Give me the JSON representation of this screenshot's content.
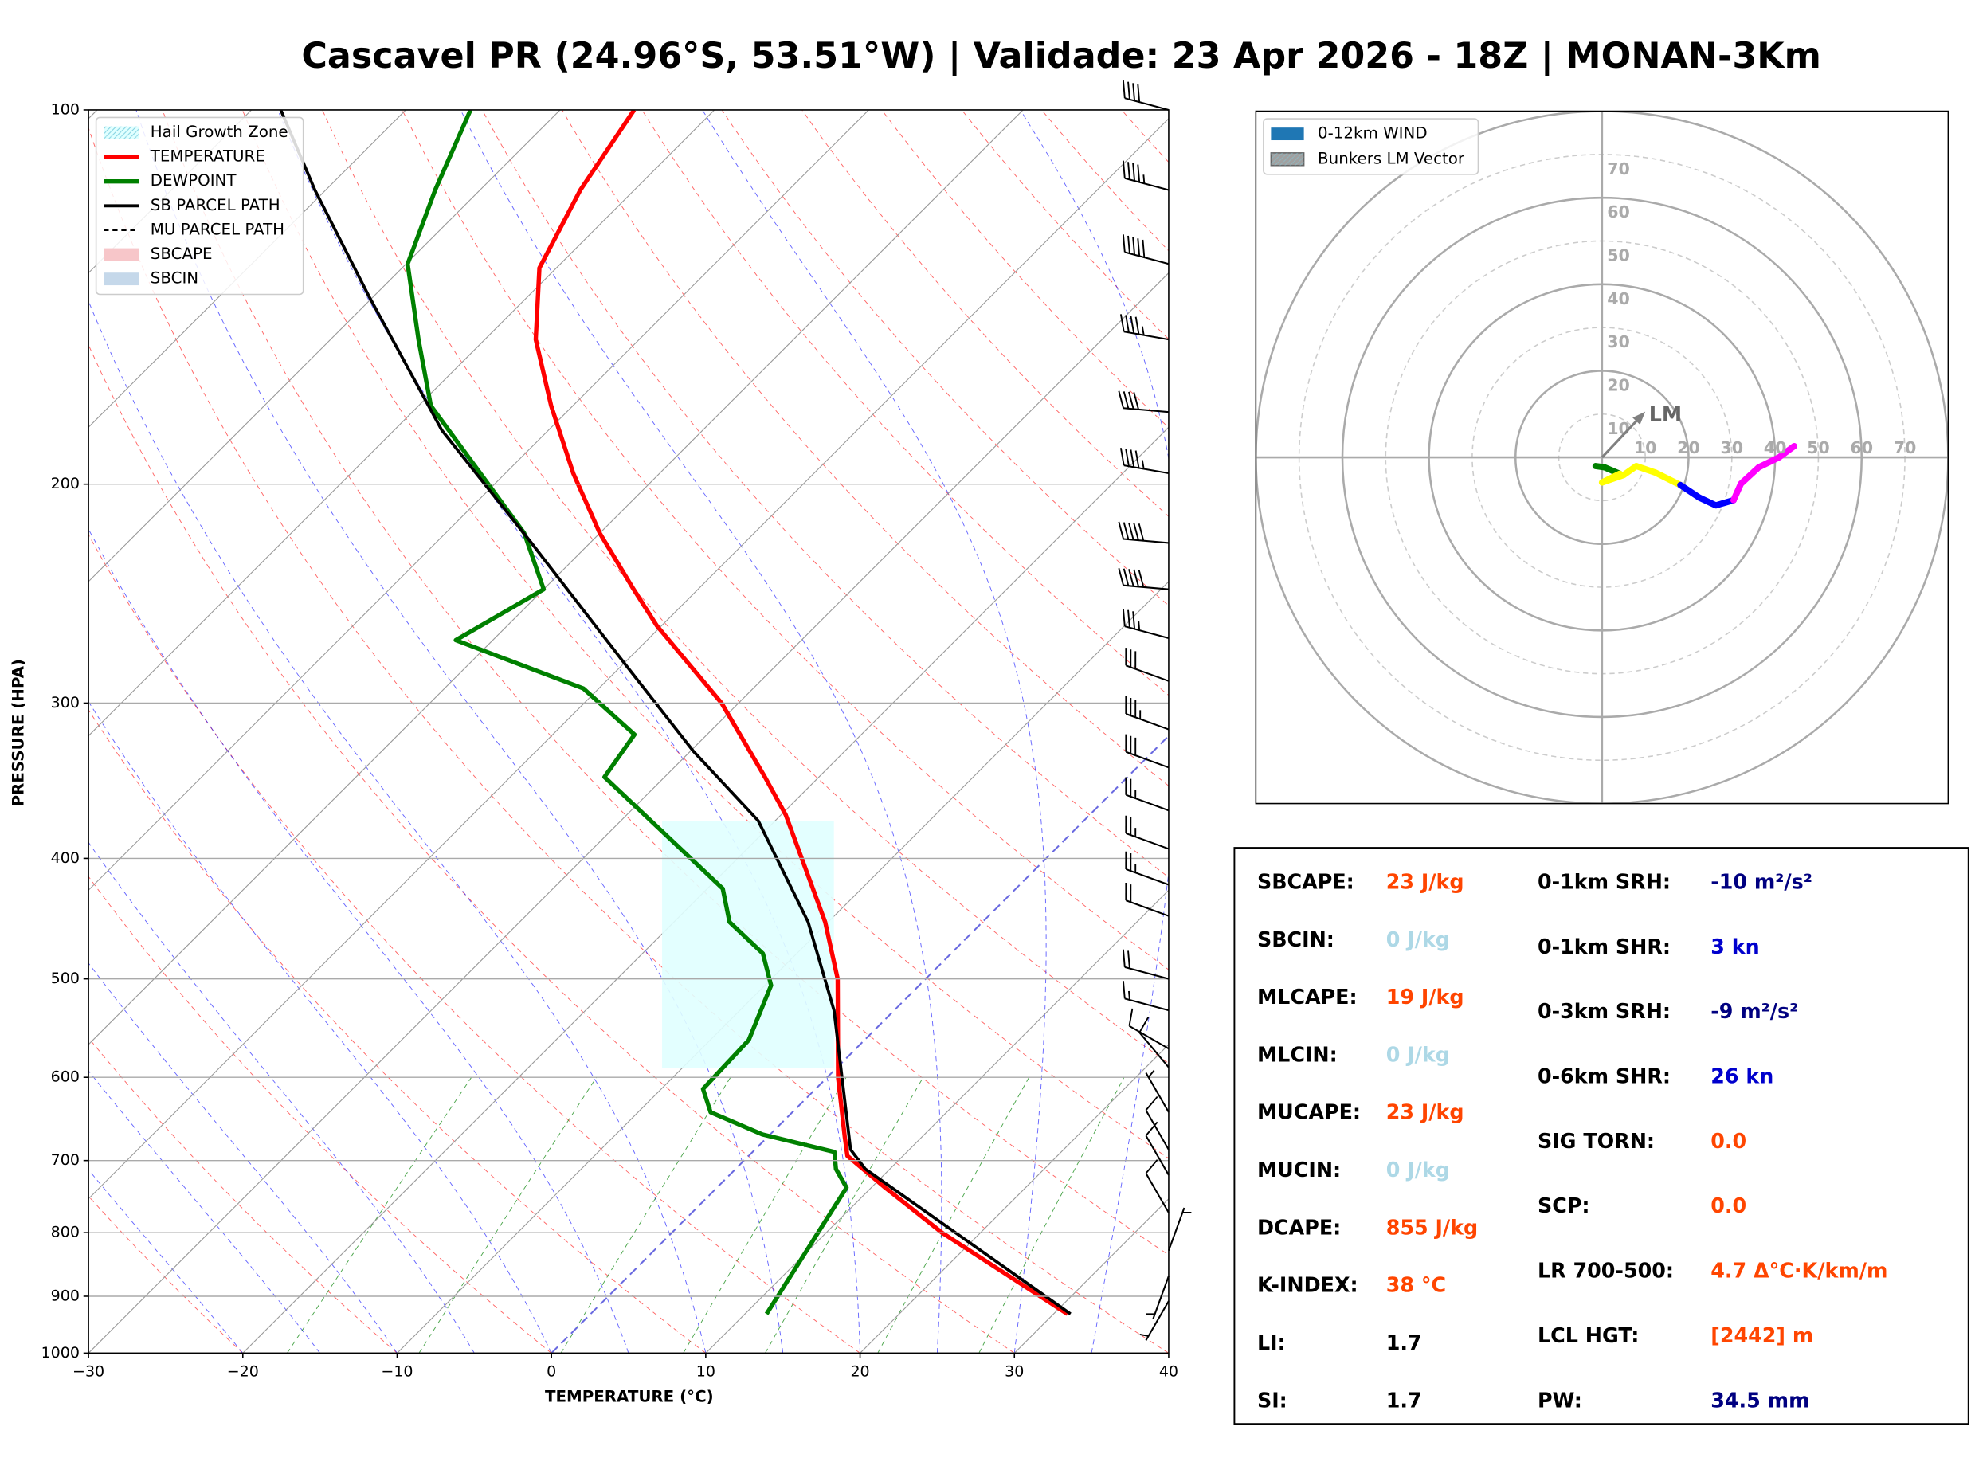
{
  "title": "Cascavel PR (24.96°S, 53.51°W) | Validade: 23 Apr 2026 - 18Z | MONAN-3Km",
  "chart_data": [
    {
      "type": "skewt",
      "x_label": "TEMPERATURE (°C)",
      "y_label": "PRESSURE (HPA)",
      "xlim": [
        -30,
        40
      ],
      "ylim": [
        1000,
        100
      ],
      "log_y": true,
      "xticks": [
        {
          "value": -30,
          "label": "−30"
        },
        {
          "value": -20,
          "label": "−20"
        },
        {
          "value": -10,
          "label": "−10"
        },
        0,
        10,
        20,
        30,
        40
      ],
      "yticks": [
        1000,
        900,
        800,
        700,
        600,
        500,
        400,
        300,
        200,
        100
      ],
      "grid": true,
      "series": [
        {
          "name": "TEMPERATURE",
          "color": "#ff0000",
          "pressure": [
            930,
            800,
            736,
            694,
            670,
            600,
            500,
            450,
            369,
            344,
            300,
            260,
            242,
            219,
            196,
            173,
            153,
            134,
            116,
            100
          ],
          "values": [
            30.9,
            17.5,
            10.9,
            6.4,
            5.0,
            0.7,
            -5.7,
            -10.2,
            -19.7,
            -23.5,
            -31.1,
            -40.3,
            -44.4,
            -50.0,
            -55.6,
            -61.4,
            -66.7,
            -71.1,
            -73.5,
            -75.2
          ]
        },
        {
          "name": "DEWPOINT",
          "color": "#008000",
          "pressure": [
            930,
            736,
            711,
            689,
            667,
            640,
            613,
            560,
            506,
            477,
            450,
            423,
            344,
            318,
            292,
            267,
            243,
            219,
            173,
            153,
            133,
            116,
            100
          ],
          "values": [
            11.4,
            8.4,
            6.5,
            5.3,
            -0.5,
            -5.3,
            -7.3,
            -7.5,
            -9.6,
            -12.2,
            -16.4,
            -19.0,
            -33.9,
            -34.7,
            -41.0,
            -52.4,
            -50.0,
            -54.9,
            -69.2,
            -74.3,
            -79.9,
            -82.9,
            -85.8
          ]
        },
        {
          "name": "SB PARCEL PATH",
          "color": "#000000",
          "pressure": [
            930,
            711,
            686,
            530,
            450,
            373,
            328,
            279,
            223,
            181,
            141,
            116,
            100
          ],
          "values": [
            31.1,
            8.4,
            6.2,
            -3.9,
            -11.3,
            -21.1,
            -29.8,
            -39.9,
            -53.8,
            -66.9,
            -80.4,
            -90.7,
            -98.1
          ]
        }
      ],
      "extra_legend": [
        {
          "name": "Hail Growth Zone",
          "color": "#e0ffff",
          "kind": "patch"
        },
        {
          "name": "MU PARCEL PATH",
          "color": "#000000",
          "kind": "dashed"
        },
        {
          "name": "SBCAPE",
          "color": "#f7c6c9",
          "kind": "patch"
        },
        {
          "name": "SBCIN",
          "color": "#c5d8ea",
          "kind": "patch"
        }
      ],
      "hail_zone_pressure": [
        590,
        373
      ],
      "wind_barbs": {
        "pressure": [
          100,
          116,
          133,
          153,
          175,
          196,
          223,
          243,
          266,
          288,
          315,
          338,
          366,
          393,
          420,
          445,
          500,
          530,
          569,
          589,
          640,
          686,
          719,
          771,
          827,
          867,
          908
        ],
        "speed": [
          40,
          45,
          50,
          45,
          40,
          45,
          50,
          50,
          35,
          30,
          35,
          30,
          25,
          25,
          25,
          20,
          20,
          15,
          10,
          10,
          5,
          10,
          10,
          10,
          5,
          5,
          5
        ],
        "direction": [
          285,
          285,
          285,
          280,
          275,
          280,
          275,
          275,
          285,
          290,
          290,
          290,
          290,
          290,
          290,
          290,
          285,
          285,
          300,
          320,
          330,
          330,
          330,
          330,
          20,
          200,
          210
        ]
      }
    },
    {
      "type": "hodograph",
      "xlim": [
        -80,
        80
      ],
      "ring_ticks": [
        10,
        20,
        30,
        40,
        50,
        60,
        70
      ],
      "legend": [
        {
          "name": "0-12km WIND",
          "color": "#1f77b4"
        },
        {
          "name": "Bunkers LM Vector",
          "color": "#a0a0a0"
        }
      ],
      "segments": [
        {
          "color": "#008000",
          "u": [
            -1.5,
            0.6,
            4.1
          ],
          "v": [
            -2.0,
            -2.3,
            -3.8
          ]
        },
        {
          "color": "#ffff00",
          "u": [
            4.1,
            0.0,
            5.0,
            7.9,
            12.3,
            18.1
          ],
          "v": [
            -3.8,
            -5.8,
            -4.1,
            -2.0,
            -3.5,
            -6.4
          ]
        },
        {
          "color": "#0000ff",
          "u": [
            18.1,
            22.5,
            26.3,
            30.4
          ],
          "v": [
            -6.4,
            -9.3,
            -11.1,
            -9.9
          ]
        },
        {
          "color": "#ff00ff",
          "u": [
            30.4,
            32.1,
            36.2,
            40.9,
            44.4
          ],
          "v": [
            -9.9,
            -6.1,
            -2.3,
            0.0,
            2.6
          ]
        }
      ],
      "lm_vector": {
        "label": "LM",
        "u": 8.8,
        "v": 9.3,
        "color": "#808080"
      }
    }
  ],
  "stats": {
    "left": [
      {
        "label": "SBCAPE:",
        "value": "23 J/kg",
        "color": "#ff4500"
      },
      {
        "label": "SBCIN:",
        "value": "0 J/kg",
        "color": "#add8e6"
      },
      {
        "label": "MLCAPE:",
        "value": "19 J/kg",
        "color": "#ff4500"
      },
      {
        "label": "MLCIN:",
        "value": "0 J/kg",
        "color": "#add8e6"
      },
      {
        "label": "MUCAPE:",
        "value": "23 J/kg",
        "color": "#ff4500"
      },
      {
        "label": "MUCIN:",
        "value": "0 J/kg",
        "color": "#add8e6"
      },
      {
        "label": "DCAPE:",
        "value": "855 J/kg",
        "color": "#ff4500"
      },
      {
        "label": "K-INDEX:",
        "value": "38 °C",
        "color": "#ff4500"
      },
      {
        "label": "LI:",
        "value": "1.7",
        "color": "#000000"
      },
      {
        "label": "SI:",
        "value": "1.7",
        "color": "#000000"
      }
    ],
    "right": [
      {
        "label": "0-1km SRH:",
        "value": "-10 m²/s²",
        "color": "#000080"
      },
      {
        "label": "0-1km SHR:",
        "value": "3 kn",
        "color": "#0000cd"
      },
      {
        "label": "0-3km SRH:",
        "value": "-9 m²/s²",
        "color": "#000080"
      },
      {
        "label": "0-6km SHR:",
        "value": "26 kn",
        "color": "#0000cd"
      },
      {
        "label": "SIG TORN:",
        "value": "0.0",
        "color": "#ff4500"
      },
      {
        "label": "SCP:",
        "value": "0.0",
        "color": "#ff4500"
      },
      {
        "label": "LR 700-500:",
        "value": "4.7 Δ°C·K/km/m",
        "color": "#ff4500"
      },
      {
        "label": "LCL HGT:",
        "value": "[2442] m",
        "color": "#ff4500"
      },
      {
        "label": "PW:",
        "value": "34.5 mm",
        "color": "#000080"
      }
    ]
  }
}
